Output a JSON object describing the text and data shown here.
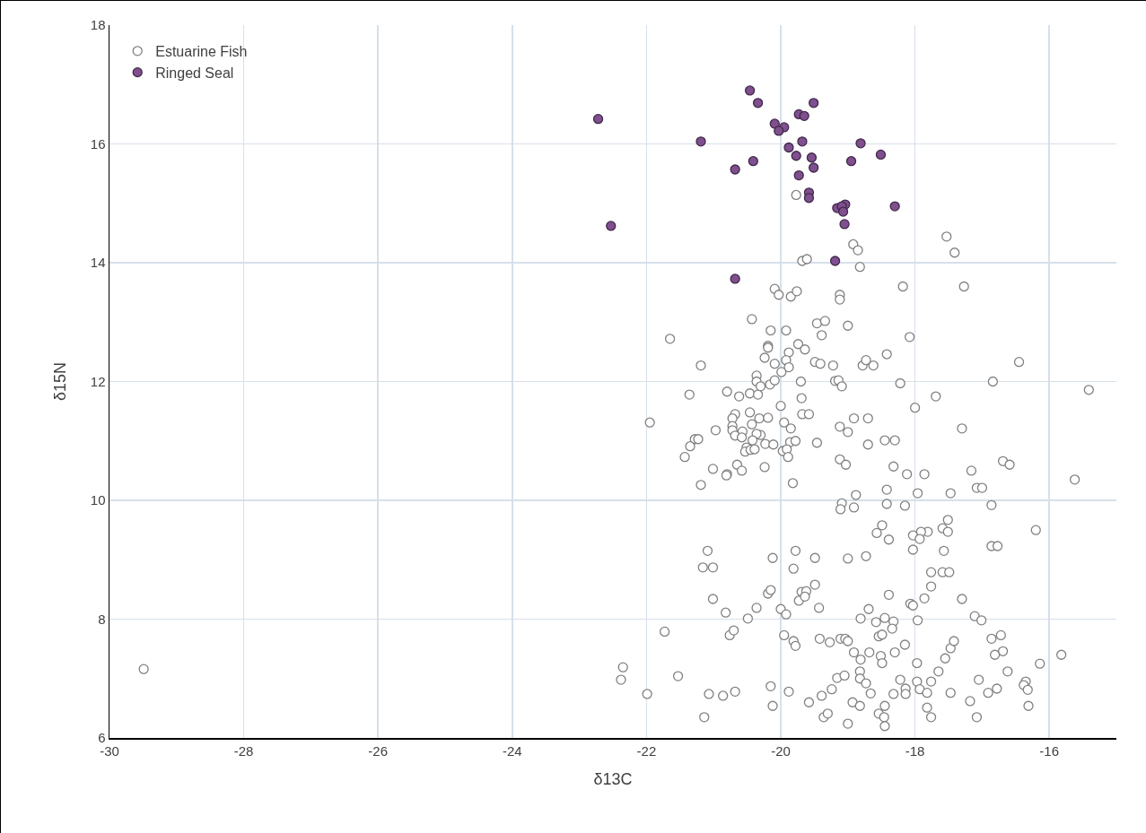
{
  "chart_data": {
    "type": "scatter",
    "xlabel": "δ13C",
    "ylabel": "δ15N",
    "xlim": [
      -30,
      -15
    ],
    "ylim": [
      6,
      18
    ],
    "xticks": [
      -30,
      -28,
      -26,
      -24,
      -22,
      -20,
      -18,
      -16
    ],
    "yticks": [
      6,
      8,
      10,
      12,
      14,
      16,
      18
    ],
    "grid": true,
    "legend": "top left",
    "marker": "circle",
    "series": [
      {
        "name": "Estuarine Fish",
        "color": "#ffffff",
        "x": [
          -29.49,
          -19.77,
          -18.92,
          -18.85,
          -19.68,
          -19.61,
          -18.82,
          -17.53,
          -17.41,
          -20.09,
          -20.03,
          -19.85,
          -19.76,
          -19.12,
          -19.12,
          -18.18,
          -17.27,
          -20.43,
          -21.65,
          -20.15,
          -19.92,
          -19.46,
          -19.34,
          -19.0,
          -19.39,
          -18.08,
          -20.19,
          -20.19,
          -19.74,
          -19.88,
          -19.64,
          -20.24,
          -21.19,
          -20.09,
          -19.92,
          -19.88,
          -19.99,
          -19.49,
          -19.41,
          -19.22,
          -18.78,
          -18.73,
          -18.62,
          -18.42,
          -20.36,
          -20.36,
          -20.3,
          -20.16,
          -20.09,
          -19.7,
          -19.19,
          -19.14,
          -19.09,
          -18.22,
          -17.69,
          -21.36,
          -20.8,
          -20.62,
          -20.46,
          -20.34,
          -19.69,
          -18.0,
          -21.95,
          -20.0,
          -20.68,
          -20.72,
          -20.46,
          -20.32,
          -20.19,
          -19.68,
          -19.58,
          -20.97,
          -20.72,
          -20.72,
          -20.57,
          -20.68,
          -20.43,
          -20.3,
          -20.36,
          -20.58,
          -20.42,
          -19.95,
          -19.85,
          -19.86,
          -19.78,
          -19.12,
          -19.0,
          -18.91,
          -18.7,
          -19.46,
          -18.7,
          -18.45,
          -18.3,
          -17.3,
          -21.28,
          -21.23,
          -21.35,
          -21.43,
          -20.51,
          -20.53,
          -20.45,
          -20.39,
          -20.23,
          -20.11,
          -19.97,
          -19.91,
          -19.89,
          -21.01,
          -20.65,
          -20.58,
          -20.8,
          -20.81,
          -20.24,
          -21.19,
          -19.82,
          -19.12,
          -19.03,
          -18.32,
          -18.12,
          -17.86,
          -17.16,
          -18.42,
          -17.96,
          -17.47,
          -18.88,
          -19.09,
          -18.42,
          -18.15,
          -19.11,
          -18.91,
          -16.45,
          -16.84,
          -15.41,
          -16.69,
          -16.59,
          -15.62,
          -17.08,
          -17.0,
          -16.86,
          -17.51,
          -17.59,
          -17.51,
          -17.81,
          -17.91,
          -18.03,
          -16.2,
          -18.49,
          -18.57,
          -18.39,
          -17.93,
          -18.03,
          -17.57,
          -21.09,
          -21.16,
          -21.01,
          -20.12,
          -19.78,
          -19.81,
          -19.49,
          -19.0,
          -18.73,
          -17.76,
          -17.59,
          -17.49,
          -17.76,
          -17.86,
          -17.3,
          -18.39,
          -18.07,
          -18.03,
          -21.01,
          -20.82,
          -20.36,
          -20.19,
          -20.15,
          -19.73,
          -19.69,
          -19.62,
          -19.64,
          -19.49,
          -19.43,
          -20.0,
          -19.92,
          -20.49,
          -21.73,
          -20.76,
          -20.7,
          -19.95,
          -19.81,
          -19.78,
          -19.42,
          -19.27,
          -19.11,
          -19.04,
          -19.0,
          -18.69,
          -18.81,
          -18.58,
          -18.45,
          -18.32,
          -18.34,
          -17.96,
          -18.54,
          -18.49,
          -18.15,
          -18.91,
          -18.68,
          -18.81,
          -18.51,
          -18.49,
          -18.3,
          -17.97,
          -17.55,
          -17.47,
          -17.42,
          -17.65,
          -22.35,
          -22.38,
          -21.53,
          -21.99,
          -21.07,
          -20.86,
          -20.68,
          -21.14,
          -20.15,
          -20.12,
          -19.88,
          -19.58,
          -19.39,
          -19.24,
          -19.16,
          -19.05,
          -18.82,
          -18.82,
          -18.73,
          -18.66,
          -18.93,
          -18.82,
          -19.36,
          -19.3,
          -19.0,
          -18.45,
          -18.54,
          -18.46,
          -18.45,
          -18.32,
          -18.22,
          -18.14,
          -18.14,
          -17.97,
          -17.93,
          -17.82,
          -17.76,
          -17.82,
          -17.76,
          -17.47,
          -16.86,
          -16.77,
          -17.11,
          -17.01,
          -16.86,
          -16.72,
          -16.69,
          -16.81,
          -15.82,
          -16.14,
          -16.62,
          -17.05,
          -16.35,
          -16.38,
          -16.32,
          -16.78,
          -16.91,
          -17.18,
          -16.31,
          -17.08
        ],
        "values": [
          7.16,
          15.14,
          14.31,
          14.21,
          14.03,
          14.06,
          13.93,
          14.44,
          14.17,
          13.56,
          13.46,
          13.43,
          13.52,
          13.46,
          13.38,
          13.6,
          13.6,
          13.05,
          12.72,
          12.86,
          12.86,
          12.98,
          13.02,
          12.94,
          12.78,
          12.75,
          12.6,
          12.57,
          12.63,
          12.49,
          12.54,
          12.4,
          12.27,
          12.3,
          12.36,
          12.24,
          12.16,
          12.33,
          12.3,
          12.27,
          12.27,
          12.36,
          12.27,
          12.46,
          12.1,
          12.0,
          11.92,
          11.95,
          12.02,
          12.0,
          12.01,
          12.02,
          11.92,
          11.97,
          11.75,
          11.78,
          11.83,
          11.75,
          11.8,
          11.78,
          11.72,
          11.56,
          11.31,
          11.59,
          11.45,
          11.38,
          11.48,
          11.38,
          11.39,
          11.45,
          11.45,
          11.18,
          11.25,
          11.18,
          11.16,
          11.09,
          11.28,
          11.1,
          11.12,
          11.06,
          11.01,
          11.31,
          11.21,
          10.98,
          11.0,
          11.24,
          11.15,
          11.38,
          11.38,
          10.97,
          10.94,
          11.01,
          11.01,
          11.21,
          11.03,
          11.03,
          10.91,
          10.73,
          10.89,
          10.82,
          10.85,
          10.86,
          10.95,
          10.94,
          10.83,
          10.86,
          10.73,
          10.53,
          10.6,
          10.5,
          10.44,
          10.42,
          10.56,
          10.26,
          10.29,
          10.69,
          10.6,
          10.57,
          10.44,
          10.44,
          10.5,
          10.18,
          10.12,
          10.12,
          10.09,
          9.95,
          9.94,
          9.91,
          9.85,
          9.88,
          12.33,
          12.0,
          11.86,
          10.66,
          10.6,
          10.35,
          10.21,
          10.21,
          9.92,
          9.67,
          9.53,
          9.47,
          9.47,
          9.47,
          9.41,
          9.5,
          9.58,
          9.45,
          9.34,
          9.35,
          9.17,
          9.15,
          9.15,
          8.87,
          8.87,
          9.03,
          9.15,
          8.85,
          9.03,
          9.02,
          9.06,
          8.79,
          8.79,
          8.79,
          8.55,
          8.35,
          8.34,
          8.41,
          8.26,
          8.23,
          8.34,
          8.11,
          8.19,
          8.43,
          8.49,
          8.31,
          8.46,
          8.47,
          8.38,
          8.58,
          8.19,
          8.17,
          8.08,
          8.01,
          7.79,
          7.73,
          7.81,
          7.73,
          7.63,
          7.55,
          7.67,
          7.61,
          7.67,
          7.67,
          7.63,
          8.17,
          8.01,
          7.95,
          8.02,
          7.96,
          7.84,
          7.98,
          7.71,
          7.74,
          7.57,
          7.44,
          7.44,
          7.32,
          7.38,
          7.26,
          7.44,
          7.26,
          7.34,
          7.51,
          7.63,
          7.12,
          7.19,
          6.98,
          7.04,
          6.74,
          6.74,
          6.71,
          6.78,
          6.35,
          6.87,
          6.54,
          6.78,
          6.6,
          6.71,
          6.82,
          7.01,
          7.05,
          7.12,
          7.0,
          6.92,
          6.75,
          6.6,
          6.54,
          6.35,
          6.41,
          6.24,
          6.54,
          6.41,
          6.35,
          6.2,
          6.74,
          6.98,
          6.83,
          6.74,
          6.95,
          6.82,
          6.76,
          6.95,
          6.51,
          6.35,
          6.76,
          9.23,
          9.23,
          8.05,
          7.98,
          7.67,
          7.73,
          7.46,
          7.4,
          7.4,
          7.25,
          7.12,
          6.98,
          6.95,
          6.89,
          6.81,
          6.83,
          6.76,
          6.62,
          6.54,
          6.35
        ]
      },
      {
        "name": "Ringed Seal",
        "color": "#7f4f8f",
        "x": [
          -22.72,
          -21.19,
          -22.53,
          -20.46,
          -20.34,
          -19.51,
          -19.73,
          -19.65,
          -20.09,
          -19.95,
          -20.03,
          -19.68,
          -18.81,
          -18.51,
          -19.88,
          -19.77,
          -19.54,
          -19.51,
          -20.41,
          -20.68,
          -18.95,
          -19.73,
          -19.58,
          -19.58,
          -19.16,
          -19.04,
          -19.09,
          -19.07,
          -18.3,
          -19.05,
          -19.19,
          -20.68
        ],
        "values": [
          16.42,
          16.04,
          14.62,
          16.9,
          16.69,
          16.69,
          16.5,
          16.47,
          16.34,
          16.28,
          16.22,
          16.04,
          16.01,
          15.82,
          15.94,
          15.8,
          15.77,
          15.6,
          15.71,
          15.57,
          15.71,
          15.47,
          15.18,
          15.09,
          14.92,
          14.98,
          14.95,
          14.86,
          14.95,
          14.65,
          14.03,
          13.73
        ]
      }
    ]
  }
}
